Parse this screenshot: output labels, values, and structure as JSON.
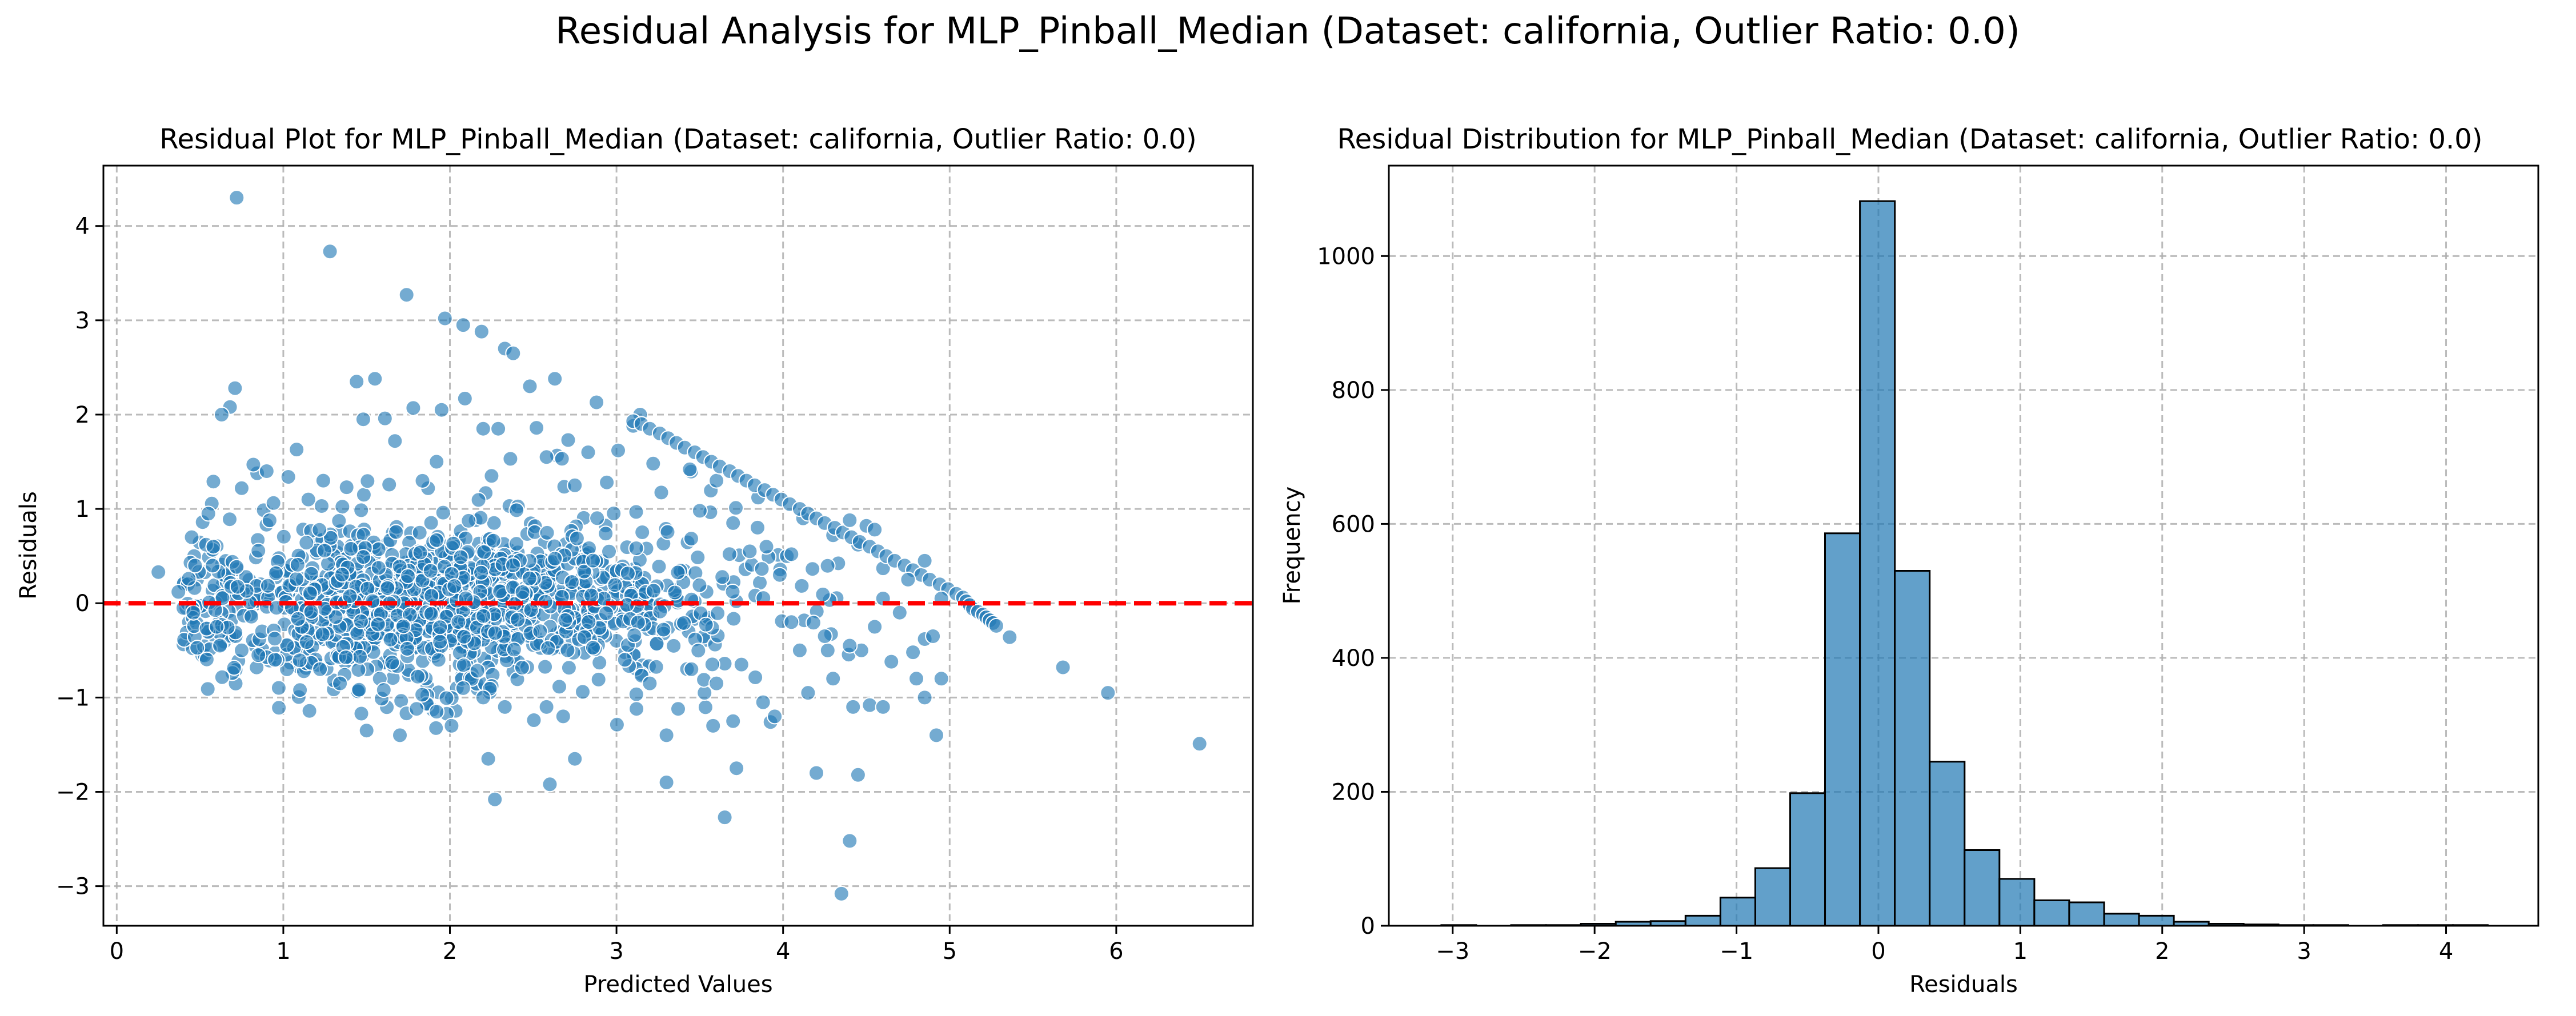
{
  "figure": {
    "suptitle": "Residual Analysis for MLP_Pinball_Median (Dataset: california, Outlier Ratio: 0.0)"
  },
  "chart_data": [
    {
      "type": "scatter",
      "title": "Residual Plot for MLP_Pinball_Median (Dataset: california, Outlier Ratio: 0.0)",
      "xlabel": "Predicted Values",
      "ylabel": "Residuals",
      "xlim": [
        -0.08,
        6.82
      ],
      "ylim": [
        -3.42,
        4.64
      ],
      "xticks": [
        0,
        1,
        2,
        3,
        4,
        5,
        6
      ],
      "yticks": [
        -3,
        -2,
        -1,
        0,
        1,
        2,
        3,
        4
      ],
      "grid": true,
      "point_color": "#1f77b4",
      "reference_line": {
        "y": 0,
        "color": "#ff0000",
        "style": "dashed"
      },
      "points": [
        [
          0.72,
          4.3
        ],
        [
          1.28,
          3.73
        ],
        [
          1.74,
          3.27
        ],
        [
          1.97,
          3.02
        ],
        [
          2.08,
          2.95
        ],
        [
          2.19,
          2.88
        ],
        [
          2.33,
          2.7
        ],
        [
          2.38,
          2.65
        ],
        [
          2.63,
          2.38
        ],
        [
          2.88,
          2.13
        ],
        [
          0.71,
          2.28
        ],
        [
          0.68,
          2.08
        ],
        [
          0.63,
          2.0
        ],
        [
          1.44,
          2.35
        ],
        [
          1.55,
          2.38
        ],
        [
          1.61,
          1.96
        ],
        [
          1.48,
          1.95
        ],
        [
          1.78,
          2.07
        ],
        [
          1.95,
          2.05
        ],
        [
          2.09,
          2.17
        ],
        [
          2.48,
          2.3
        ],
        [
          2.2,
          1.85
        ],
        [
          2.29,
          1.85
        ],
        [
          2.52,
          1.86
        ],
        [
          2.71,
          1.73
        ],
        [
          3.1,
          1.88
        ],
        [
          3.01,
          1.62
        ],
        [
          1.67,
          1.72
        ],
        [
          1.08,
          1.63
        ],
        [
          0.82,
          1.47
        ],
        [
          0.9,
          1.4
        ],
        [
          0.58,
          1.29
        ],
        [
          0.75,
          1.22
        ],
        [
          1.03,
          1.34
        ],
        [
          1.24,
          1.3
        ],
        [
          1.38,
          1.23
        ],
        [
          1.15,
          1.1
        ],
        [
          1.92,
          1.5
        ],
        [
          2.58,
          1.55
        ],
        [
          2.83,
          1.6
        ],
        [
          2.25,
          1.35
        ],
        [
          3.22,
          1.48
        ],
        [
          3.44,
          1.42
        ],
        [
          2.75,
          1.25
        ],
        [
          3.6,
          1.3
        ],
        [
          3.85,
          1.12
        ],
        [
          4.3,
          0.72
        ],
        [
          4.6,
          0.37
        ],
        [
          3.5,
          0.98
        ],
        [
          3.7,
          0.85
        ],
        [
          3.9,
          0.6
        ],
        [
          4.05,
          0.52
        ],
        [
          4.12,
          0.9
        ],
        [
          4.45,
          0.62
        ],
        [
          0.55,
          0.95
        ],
        [
          0.45,
          0.7
        ],
        [
          0.58,
          0.6
        ],
        [
          0.47,
          0.4
        ],
        [
          0.37,
          0.12
        ],
        [
          0.25,
          0.33
        ],
        [
          0.4,
          -0.05
        ],
        [
          0.46,
          -0.1
        ],
        [
          0.6,
          -0.25
        ],
        [
          0.62,
          -0.45
        ],
        [
          0.75,
          -0.5
        ],
        [
          0.85,
          -0.55
        ],
        [
          0.95,
          -0.6
        ],
        [
          1.1,
          -0.92
        ],
        [
          1.22,
          -0.7
        ],
        [
          1.34,
          -0.85
        ],
        [
          1.5,
          -1.35
        ],
        [
          1.7,
          -1.4
        ],
        [
          1.8,
          -1.12
        ],
        [
          1.92,
          -1.15
        ],
        [
          2.01,
          -1.3
        ],
        [
          2.08,
          -0.9
        ],
        [
          2.2,
          -1.0
        ],
        [
          2.33,
          -1.1
        ],
        [
          2.58,
          -1.1
        ],
        [
          2.68,
          -1.2
        ],
        [
          2.75,
          -1.65
        ],
        [
          2.23,
          -1.65
        ],
        [
          2.27,
          -2.08
        ],
        [
          2.6,
          -1.92
        ],
        [
          3.12,
          -1.12
        ],
        [
          3.3,
          -1.4
        ],
        [
          3.37,
          -1.12
        ],
        [
          3.58,
          -1.3
        ],
        [
          3.7,
          -1.25
        ],
        [
          3.88,
          -1.05
        ],
        [
          3.95,
          -1.2
        ],
        [
          4.15,
          -0.95
        ],
        [
          4.3,
          -0.8
        ],
        [
          4.42,
          -1.1
        ],
        [
          4.52,
          -1.08
        ],
        [
          4.6,
          -1.1
        ],
        [
          4.85,
          -1.0
        ],
        [
          4.8,
          -0.8
        ],
        [
          4.95,
          -0.8
        ],
        [
          4.92,
          -1.4
        ],
        [
          3.3,
          -1.9
        ],
        [
          3.65,
          -2.27
        ],
        [
          3.72,
          -1.75
        ],
        [
          4.2,
          -1.8
        ],
        [
          4.45,
          -1.82
        ],
        [
          4.4,
          -2.52
        ],
        [
          4.35,
          -3.08
        ],
        [
          4.47,
          -0.5
        ],
        [
          4.65,
          -0.62
        ],
        [
          4.78,
          -0.52
        ],
        [
          4.85,
          -0.38
        ],
        [
          4.9,
          -0.35
        ],
        [
          5.36,
          -0.36
        ],
        [
          5.68,
          -0.68
        ],
        [
          5.95,
          -0.95
        ],
        [
          6.5,
          -1.49
        ],
        [
          3.1,
          1.93
        ],
        [
          3.15,
          1.9
        ],
        [
          3.2,
          1.85
        ],
        [
          3.26,
          1.8
        ],
        [
          3.31,
          1.75
        ],
        [
          3.36,
          1.7
        ],
        [
          3.41,
          1.65
        ],
        [
          3.47,
          1.6
        ],
        [
          3.52,
          1.55
        ],
        [
          3.57,
          1.5
        ],
        [
          3.62,
          1.45
        ],
        [
          3.68,
          1.4
        ],
        [
          3.73,
          1.35
        ],
        [
          3.78,
          1.3
        ],
        [
          3.83,
          1.25
        ],
        [
          3.89,
          1.2
        ],
        [
          3.94,
          1.15
        ],
        [
          3.99,
          1.1
        ],
        [
          4.04,
          1.05
        ],
        [
          4.1,
          1.0
        ],
        [
          4.15,
          0.95
        ],
        [
          4.2,
          0.9
        ],
        [
          4.25,
          0.85
        ],
        [
          4.31,
          0.8
        ],
        [
          4.36,
          0.75
        ],
        [
          4.41,
          0.7
        ],
        [
          4.46,
          0.65
        ],
        [
          4.52,
          0.6
        ],
        [
          4.57,
          0.55
        ],
        [
          4.62,
          0.5
        ],
        [
          4.67,
          0.45
        ],
        [
          4.73,
          0.4
        ],
        [
          4.78,
          0.35
        ],
        [
          4.83,
          0.3
        ],
        [
          4.88,
          0.25
        ],
        [
          4.94,
          0.2
        ],
        [
          4.99,
          0.15
        ],
        [
          5.04,
          0.1
        ],
        [
          5.08,
          0.06
        ],
        [
          5.1,
          0.02
        ],
        [
          5.12,
          -0.02
        ],
        [
          5.14,
          -0.06
        ],
        [
          5.17,
          -0.09
        ],
        [
          5.2,
          -0.12
        ],
        [
          5.22,
          -0.15
        ],
        [
          5.24,
          -0.18
        ],
        [
          5.26,
          -0.21
        ],
        [
          5.28,
          -0.24
        ],
        [
          4.5,
          0.82
        ],
        [
          4.55,
          0.78
        ],
        [
          4.4,
          0.88
        ],
        [
          4.85,
          0.45
        ],
        [
          4.75,
          0.25
        ],
        [
          4.6,
          0.05
        ],
        [
          4.95,
          0.05
        ],
        [
          4.7,
          -0.1
        ],
        [
          4.55,
          -0.25
        ],
        [
          4.4,
          -0.45
        ],
        [
          4.25,
          -0.35
        ],
        [
          4.1,
          -0.5
        ],
        [
          4.05,
          -0.2
        ],
        [
          3.98,
          0.3
        ],
        [
          3.8,
          0.55
        ],
        [
          3.75,
          -0.65
        ],
        [
          3.6,
          -0.85
        ],
        [
          3.45,
          -0.7
        ],
        [
          3.2,
          -0.85
        ],
        [
          3.05,
          -0.6
        ]
      ]
    },
    {
      "type": "bar",
      "subtype": "histogram",
      "title": "Residual Distribution for MLP_Pinball_Median (Dataset: california, Outlier Ratio: 0.0)",
      "xlabel": "Residuals",
      "ylabel": "Frequency",
      "xlim": [
        -3.45,
        4.65
      ],
      "ylim": [
        0,
        1135
      ],
      "xticks": [
        -3,
        -2,
        -1,
        0,
        1,
        2,
        3,
        4
      ],
      "yticks": [
        0,
        200,
        400,
        600,
        800,
        1000
      ],
      "grid": true,
      "bar_color": "#1f77b4",
      "bin_start": -3.08,
      "bin_width": 0.2458,
      "counts": [
        1,
        0,
        1,
        1,
        3,
        6,
        7,
        15,
        42,
        86,
        198,
        586,
        1082,
        530,
        245,
        113,
        70,
        38,
        35,
        18,
        15,
        6,
        3,
        2,
        1,
        1,
        0,
        1,
        1,
        1
      ]
    }
  ]
}
